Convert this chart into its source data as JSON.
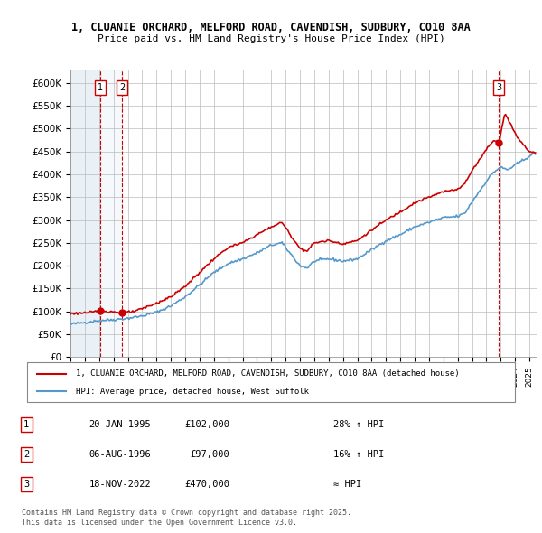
{
  "title_line1": "1, CLUANIE ORCHARD, MELFORD ROAD, CAVENDISH, SUDBURY, CO10 8AA",
  "title_line2": "Price paid vs. HM Land Registry's House Price Index (HPI)",
  "xlim_start": 1993.0,
  "xlim_end": 2025.5,
  "ylim_min": 0,
  "ylim_max": 630000,
  "yticks": [
    0,
    50000,
    100000,
    150000,
    200000,
    250000,
    300000,
    350000,
    400000,
    450000,
    500000,
    550000,
    600000
  ],
  "ytick_labels": [
    "£0",
    "£50K",
    "£100K",
    "£150K",
    "£200K",
    "£250K",
    "£300K",
    "£350K",
    "£400K",
    "£450K",
    "£500K",
    "£550K",
    "£600K"
  ],
  "sale_dates": [
    1995.054,
    1996.589,
    2022.882
  ],
  "sale_prices": [
    102000,
    97000,
    470000
  ],
  "sale_labels": [
    "1",
    "2",
    "3"
  ],
  "hpi_color": "#5599cc",
  "price_color": "#cc0000",
  "legend_entries": [
    "1, CLUANIE ORCHARD, MELFORD ROAD, CAVENDISH, SUDBURY, CO10 8AA (detached house)",
    "HPI: Average price, detached house, West Suffolk"
  ],
  "table_data": [
    [
      "1",
      "20-JAN-1995",
      "£102,000",
      "28% ↑ HPI"
    ],
    [
      "2",
      "06-AUG-1996",
      "£97,000",
      "16% ↑ HPI"
    ],
    [
      "3",
      "18-NOV-2022",
      "£470,000",
      "≈ HPI"
    ]
  ],
  "footnote": "Contains HM Land Registry data © Crown copyright and database right 2025.\nThis data is licensed under the Open Government Licence v3.0.",
  "background_color": "#ffffff",
  "plot_bg_color": "#ffffff",
  "grid_color": "#bbbbbb",
  "hpi_anchors": [
    [
      1993.0,
      72000
    ],
    [
      1994.0,
      76000
    ],
    [
      1995.0,
      80000
    ],
    [
      1996.0,
      82000
    ],
    [
      1997.0,
      85000
    ],
    [
      1998.0,
      90000
    ],
    [
      1999.0,
      98000
    ],
    [
      2000.0,
      112000
    ],
    [
      2001.0,
      132000
    ],
    [
      2002.0,
      158000
    ],
    [
      2003.0,
      185000
    ],
    [
      2004.0,
      205000
    ],
    [
      2005.0,
      215000
    ],
    [
      2006.0,
      228000
    ],
    [
      2007.0,
      245000
    ],
    [
      2007.75,
      250000
    ],
    [
      2008.5,
      220000
    ],
    [
      2009.0,
      200000
    ],
    [
      2009.5,
      195000
    ],
    [
      2010.0,
      210000
    ],
    [
      2011.0,
      215000
    ],
    [
      2012.0,
      210000
    ],
    [
      2013.0,
      215000
    ],
    [
      2014.0,
      235000
    ],
    [
      2015.0,
      255000
    ],
    [
      2016.0,
      268000
    ],
    [
      2017.0,
      285000
    ],
    [
      2018.0,
      295000
    ],
    [
      2019.0,
      305000
    ],
    [
      2020.0,
      308000
    ],
    [
      2020.5,
      315000
    ],
    [
      2021.0,
      340000
    ],
    [
      2022.0,
      385000
    ],
    [
      2022.5,
      405000
    ],
    [
      2023.0,
      415000
    ],
    [
      2023.5,
      410000
    ],
    [
      2024.0,
      420000
    ],
    [
      2024.5,
      430000
    ],
    [
      2025.0,
      440000
    ],
    [
      2025.3,
      445000
    ]
  ],
  "price_anchors": [
    [
      1993.0,
      95000
    ],
    [
      1994.5,
      98000
    ],
    [
      1995.054,
      102000
    ],
    [
      1996.0,
      99000
    ],
    [
      1996.589,
      97000
    ],
    [
      1997.5,
      100000
    ],
    [
      1999.0,
      118000
    ],
    [
      2000.0,
      132000
    ],
    [
      2001.0,
      155000
    ],
    [
      2002.0,
      185000
    ],
    [
      2003.0,
      215000
    ],
    [
      2004.0,
      240000
    ],
    [
      2005.0,
      250000
    ],
    [
      2006.0,
      268000
    ],
    [
      2007.0,
      285000
    ],
    [
      2007.75,
      295000
    ],
    [
      2008.5,
      260000
    ],
    [
      2009.0,
      238000
    ],
    [
      2009.5,
      232000
    ],
    [
      2010.0,
      250000
    ],
    [
      2011.0,
      255000
    ],
    [
      2012.0,
      248000
    ],
    [
      2013.0,
      255000
    ],
    [
      2014.0,
      278000
    ],
    [
      2015.0,
      300000
    ],
    [
      2016.0,
      318000
    ],
    [
      2017.0,
      338000
    ],
    [
      2018.0,
      350000
    ],
    [
      2019.0,
      362000
    ],
    [
      2020.0,
      368000
    ],
    [
      2020.5,
      380000
    ],
    [
      2021.0,
      408000
    ],
    [
      2022.0,
      455000
    ],
    [
      2022.5,
      475000
    ],
    [
      2022.882,
      470000
    ],
    [
      2023.0,
      490000
    ],
    [
      2023.3,
      535000
    ],
    [
      2023.5,
      520000
    ],
    [
      2023.8,
      505000
    ],
    [
      2024.0,
      490000
    ],
    [
      2024.3,
      475000
    ],
    [
      2024.6,
      465000
    ],
    [
      2025.0,
      450000
    ],
    [
      2025.3,
      448000
    ]
  ]
}
